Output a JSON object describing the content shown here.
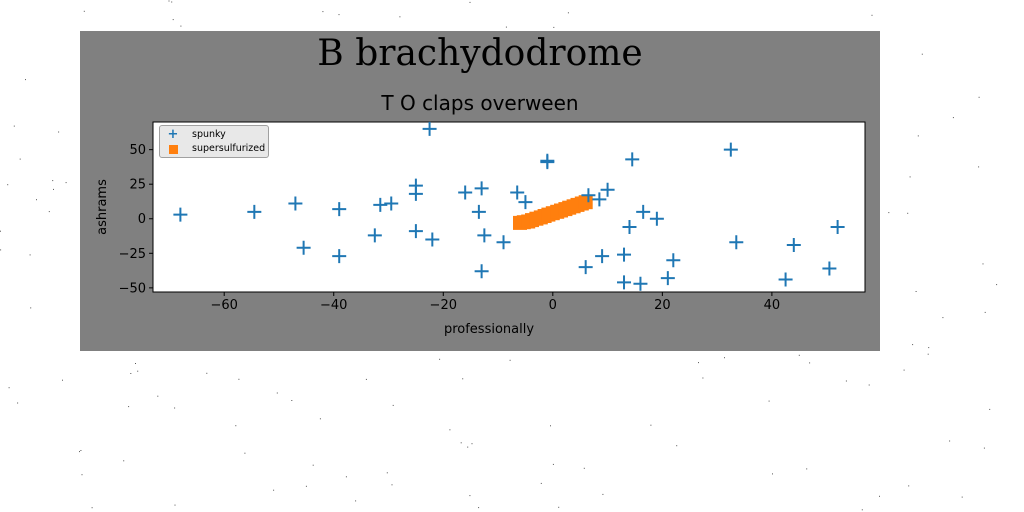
{
  "figure": {
    "suptitle": "B brachydodrome",
    "background": "#808080"
  },
  "chart_data": {
    "type": "scatter",
    "title": "T O claps overween",
    "xlabel": "professionally",
    "ylabel": "ashrams",
    "xlim": [
      -73,
      57
    ],
    "ylim": [
      -53,
      70
    ],
    "xticks": [
      -60,
      -40,
      -20,
      0,
      20,
      40
    ],
    "yticks": [
      -50,
      -25,
      0,
      25,
      50
    ],
    "xtick_labels": [
      "−60",
      "−40",
      "−20",
      "0",
      "20",
      "40"
    ],
    "ytick_labels": [
      "−50",
      "−25",
      "0",
      "25",
      "50"
    ],
    "grid": false,
    "legend_position": "upper-left",
    "series": [
      {
        "name": "spunky",
        "marker": "plus",
        "color": "#1f77b4",
        "points": [
          [
            -68,
            3
          ],
          [
            -54.5,
            5
          ],
          [
            -47,
            11
          ],
          [
            -45.5,
            -21
          ],
          [
            -39,
            7
          ],
          [
            -39,
            -27
          ],
          [
            -32.5,
            -12
          ],
          [
            -31.5,
            10
          ],
          [
            -29.5,
            11
          ],
          [
            -25,
            24
          ],
          [
            -25,
            18
          ],
          [
            -25,
            -9
          ],
          [
            -22.5,
            65
          ],
          [
            -22,
            -15
          ],
          [
            -16,
            19
          ],
          [
            -13.5,
            5
          ],
          [
            -13,
            22
          ],
          [
            -12.5,
            -12
          ],
          [
            -13,
            -38
          ],
          [
            -9,
            -17
          ],
          [
            -6.5,
            19
          ],
          [
            -5,
            12
          ],
          [
            -1,
            42
          ],
          [
            -1,
            41
          ],
          [
            6,
            -35
          ],
          [
            6.5,
            17
          ],
          [
            8.5,
            14
          ],
          [
            9,
            -27
          ],
          [
            10,
            21
          ],
          [
            13,
            -26
          ],
          [
            13,
            -46
          ],
          [
            14,
            -6
          ],
          [
            14.5,
            43
          ],
          [
            16,
            -47
          ],
          [
            16.5,
            5
          ],
          [
            19,
            0
          ],
          [
            21,
            -43
          ],
          [
            22,
            -30
          ],
          [
            32.5,
            50
          ],
          [
            33.5,
            -17
          ],
          [
            42.5,
            -44
          ],
          [
            44,
            -19
          ],
          [
            50.5,
            -36
          ],
          [
            52,
            -6
          ]
        ]
      },
      {
        "name": "supersulfurized",
        "marker": "square",
        "color": "#ff7f0e",
        "points": [
          [
            -6,
            -3
          ],
          [
            -5.3,
            -2.5
          ],
          [
            -4.5,
            -2
          ],
          [
            -3.8,
            -1
          ],
          [
            -3,
            0
          ],
          [
            -2.2,
            1
          ],
          [
            -1.5,
            2
          ],
          [
            -0.8,
            3
          ],
          [
            0,
            4
          ],
          [
            0.8,
            5
          ],
          [
            1.5,
            6
          ],
          [
            2.3,
            7
          ],
          [
            3,
            8
          ],
          [
            3.8,
            9
          ],
          [
            4.5,
            10
          ],
          [
            5.3,
            11
          ],
          [
            6,
            12
          ]
        ]
      }
    ]
  }
}
